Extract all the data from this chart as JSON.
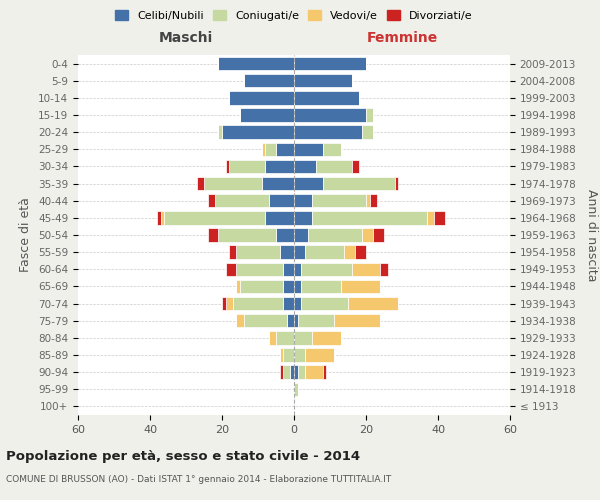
{
  "age_groups": [
    "100+",
    "95-99",
    "90-94",
    "85-89",
    "80-84",
    "75-79",
    "70-74",
    "65-69",
    "60-64",
    "55-59",
    "50-54",
    "45-49",
    "40-44",
    "35-39",
    "30-34",
    "25-29",
    "20-24",
    "15-19",
    "10-14",
    "5-9",
    "0-4"
  ],
  "birth_years": [
    "≤ 1913",
    "1914-1918",
    "1919-1923",
    "1924-1928",
    "1929-1933",
    "1934-1938",
    "1939-1943",
    "1944-1948",
    "1949-1953",
    "1954-1958",
    "1959-1963",
    "1964-1968",
    "1969-1973",
    "1974-1978",
    "1979-1983",
    "1984-1988",
    "1989-1993",
    "1994-1998",
    "1999-2003",
    "2004-2008",
    "2009-2013"
  ],
  "maschi": {
    "celibi": [
      0,
      0,
      1,
      0,
      0,
      2,
      3,
      3,
      3,
      4,
      5,
      8,
      7,
      9,
      8,
      5,
      20,
      15,
      18,
      14,
      21
    ],
    "coniugati": [
      0,
      0,
      2,
      3,
      5,
      12,
      14,
      12,
      13,
      12,
      16,
      28,
      15,
      16,
      10,
      3,
      1,
      0,
      0,
      0,
      0
    ],
    "vedovi": [
      0,
      0,
      0,
      1,
      2,
      2,
      2,
      1,
      0,
      0,
      0,
      1,
      0,
      0,
      0,
      1,
      0,
      0,
      0,
      0,
      0
    ],
    "divorziati": [
      0,
      0,
      1,
      0,
      0,
      0,
      1,
      0,
      3,
      2,
      3,
      1,
      2,
      2,
      1,
      0,
      0,
      0,
      0,
      0,
      0
    ]
  },
  "femmine": {
    "nubili": [
      0,
      0,
      1,
      0,
      0,
      1,
      2,
      2,
      2,
      3,
      4,
      5,
      5,
      8,
      6,
      8,
      19,
      20,
      18,
      16,
      20
    ],
    "coniugate": [
      0,
      1,
      2,
      3,
      5,
      10,
      13,
      11,
      14,
      11,
      15,
      32,
      15,
      20,
      10,
      5,
      3,
      2,
      0,
      0,
      0
    ],
    "vedove": [
      0,
      0,
      5,
      8,
      8,
      13,
      14,
      11,
      8,
      3,
      3,
      2,
      1,
      0,
      0,
      0,
      0,
      0,
      0,
      0,
      0
    ],
    "divorziate": [
      0,
      0,
      1,
      0,
      0,
      0,
      0,
      0,
      2,
      3,
      3,
      3,
      2,
      1,
      2,
      0,
      0,
      0,
      0,
      0,
      0
    ]
  },
  "colors": {
    "celibi": "#4472a8",
    "coniugati": "#c5d9a0",
    "vedovi": "#f5c86e",
    "divorziati": "#cc2222"
  },
  "xlim": 60,
  "title": "Popolazione per età, sesso e stato civile - 2014",
  "subtitle": "COMUNE DI BRUSSON (AO) - Dati ISTAT 1° gennaio 2014 - Elaborazione TUTTITALIA.IT",
  "ylabel_left": "Fasce di età",
  "ylabel_right": "Anni di nascita",
  "xlabel_left": "Maschi",
  "xlabel_right": "Femmine",
  "background_color": "#f0f0eb",
  "plot_bg_color": "#ffffff"
}
